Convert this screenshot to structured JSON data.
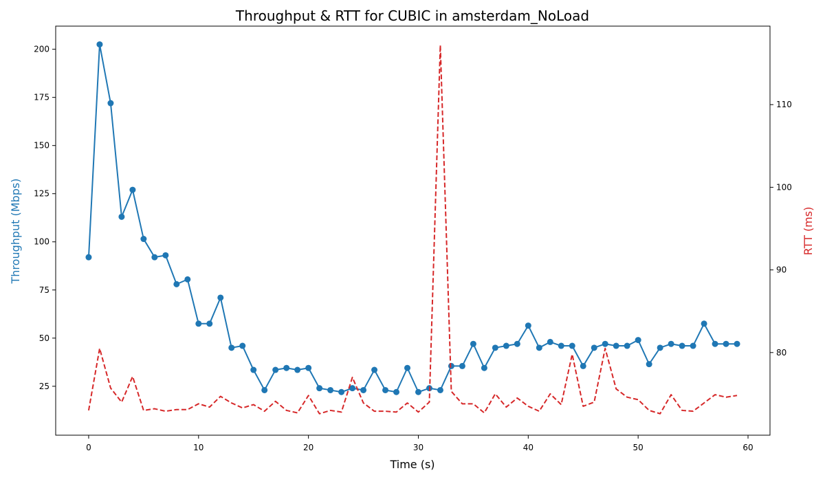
{
  "chart_data": {
    "type": "line",
    "title": "Throughput & RTT for CUBIC in amsterdam_NoLoad",
    "xlabel": "Time (s)",
    "ylabel_left": "Throughput (Mbps)",
    "ylabel_right": "RTT (ms)",
    "xlim": [
      -3,
      62
    ],
    "ylim_left": [
      -0.4,
      212
    ],
    "ylim_right": [
      70.0,
      119.5
    ],
    "x_ticks": [
      0,
      10,
      20,
      30,
      40,
      50,
      60
    ],
    "y_left_ticks": [
      25,
      50,
      75,
      100,
      125,
      150,
      175,
      200
    ],
    "y_right_ticks": [
      80,
      90,
      100,
      110
    ],
    "grid": false,
    "x": [
      0,
      1,
      2,
      3,
      4,
      5,
      6,
      7,
      8,
      9,
      10,
      11,
      12,
      13,
      14,
      15,
      16,
      17,
      18,
      19,
      20,
      21,
      22,
      23,
      24,
      25,
      26,
      27,
      28,
      29,
      30,
      31,
      32,
      33,
      34,
      35,
      36,
      37,
      38,
      39,
      40,
      41,
      42,
      43,
      44,
      45,
      46,
      47,
      48,
      49,
      50,
      51,
      52,
      53,
      54,
      55,
      56,
      57,
      58,
      59
    ],
    "series": [
      {
        "name": "Throughput",
        "axis": "left",
        "style": "solid-marker",
        "color": "#1f77b4",
        "values": [
          92,
          202.5,
          172,
          113,
          127,
          101.5,
          92,
          93,
          78,
          80.5,
          57.5,
          57.5,
          71,
          45,
          46,
          33.5,
          23,
          33.5,
          34.5,
          33.5,
          34.5,
          24,
          23,
          22,
          24,
          23,
          33.5,
          23,
          22,
          34.5,
          22,
          24,
          23,
          35.5,
          35.5,
          47,
          34.5,
          45,
          46,
          47,
          56.5,
          45,
          48,
          46,
          46,
          35.5,
          45,
          47,
          46,
          46,
          49,
          36.5,
          45,
          47,
          46,
          46,
          57.5,
          47,
          47,
          47
        ]
      },
      {
        "name": "RTT",
        "axis": "right",
        "style": "dashed",
        "color": "#d62728",
        "values": [
          73.0,
          80.5,
          75.7,
          74.0,
          77.1,
          73.0,
          73.2,
          72.9,
          73.1,
          73.1,
          73.8,
          73.4,
          74.7,
          73.9,
          73.3,
          73.7,
          72.9,
          74.1,
          73.0,
          72.7,
          74.8,
          72.6,
          73.0,
          72.8,
          77.0,
          73.9,
          72.9,
          72.9,
          72.8,
          73.9,
          72.8,
          74.0,
          117.2,
          75.3,
          73.8,
          73.8,
          72.7,
          75.0,
          73.4,
          74.5,
          73.5,
          72.9,
          75.0,
          73.7,
          79.8,
          73.5,
          74.0,
          80.5,
          75.6,
          74.6,
          74.3,
          73.0,
          72.6,
          74.9,
          73.0,
          72.9,
          73.9,
          74.9,
          74.6,
          74.8
        ]
      }
    ]
  }
}
